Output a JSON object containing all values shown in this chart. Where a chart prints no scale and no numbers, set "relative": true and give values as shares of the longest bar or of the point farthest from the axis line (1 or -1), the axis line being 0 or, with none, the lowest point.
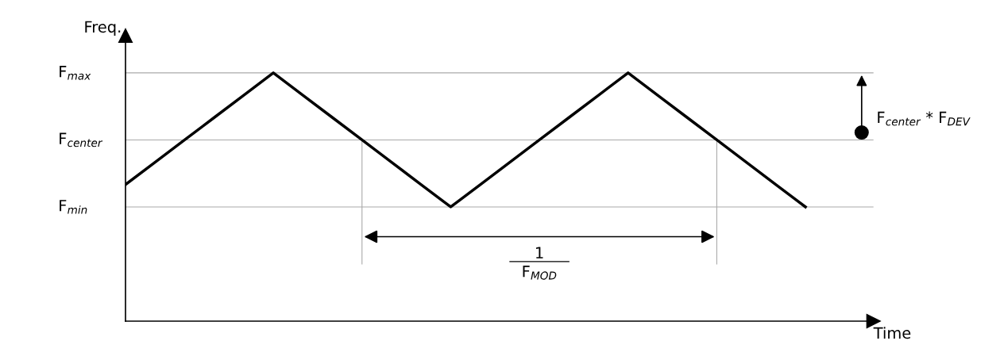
{
  "chart_data": {
    "type": "line",
    "relative": true,
    "xlabel": "Time",
    "ylabel": "Freq.",
    "categories": [
      null,
      null,
      null,
      null,
      null,
      null,
      null,
      null,
      null,
      null,
      null,
      null,
      null,
      null,
      null,
      null,
      null,
      null,
      null,
      null,
      null,
      null,
      null,
      null
    ],
    "series": [
      {
        "color": "#000000",
        "values": [
          0.55,
          0.64,
          0.73,
          0.82,
          0.91,
          1,
          0.91,
          0.82,
          0.73,
          0.64,
          0.55,
          0.46,
          0.55,
          0.64,
          0.73,
          0.82,
          0.91,
          1,
          0.91,
          0.82,
          0.73,
          0.64,
          0.55,
          0.46
        ]
      }
    ],
    "ref_lines": [
      {
        "axis": "y",
        "value": 1,
        "label": "F$_{max}$",
        "color": "#aaaaaa"
      },
      {
        "axis": "y",
        "value": 0.73,
        "label": "F$_{center}$",
        "color": "#aaaaaa"
      },
      {
        "axis": "y",
        "value": 0.46,
        "label": "F$_{min}$",
        "color": "#aaaaaa"
      }
    ],
    "annotations": [
      "F$_{center}$ * F$_{DEV}$",
      "1\nF$_{MOD}$"
    ],
    "marker": "none",
    "line_style": "solid"
  }
}
